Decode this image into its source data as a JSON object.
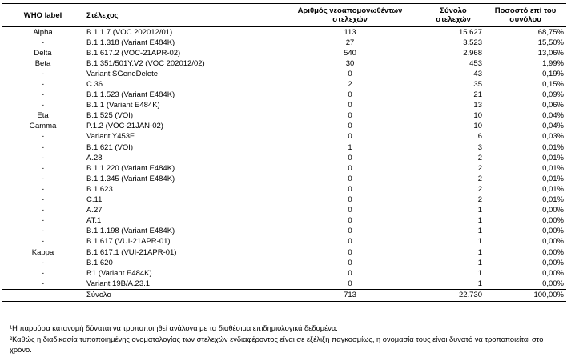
{
  "table": {
    "header": [
      "WHO label",
      "Στέλεχος",
      "Αριθμός νεοαπομονωθέντων στελεχών",
      "Σύνολο στελεχών",
      "Ποσοστό επί του συνόλου"
    ],
    "rows": [
      [
        "Alpha",
        "B.1.1.7 (VOC 202012/01)",
        "113",
        "15.627",
        "68,75%"
      ],
      [
        "-",
        "B.1.1.318 (Variant E484K)",
        "27",
        "3.523",
        "15,50%"
      ],
      [
        "Delta",
        "B.1.617.2 (VOC-21APR-02)",
        "540",
        "2.968",
        "13,06%"
      ],
      [
        "Beta",
        "B.1.351/501Y.V2 (VOC 202012/02)",
        "30",
        "453",
        "1,99%"
      ],
      [
        "-",
        "Variant SGeneDelete",
        "0",
        "43",
        "0,19%"
      ],
      [
        "-",
        "C.36",
        "2",
        "35",
        "0,15%"
      ],
      [
        "-",
        "B.1.1.523 (Variant E484K)",
        "0",
        "21",
        "0,09%"
      ],
      [
        "-",
        "B.1.1 (Variant E484K)",
        "0",
        "13",
        "0,06%"
      ],
      [
        "Eta",
        "B.1.525 (VOI)",
        "0",
        "10",
        "0,04%"
      ],
      [
        "Gamma",
        "P.1.2 (VOC-21JAN-02)",
        "0",
        "10",
        "0,04%"
      ],
      [
        "-",
        "Variant Y453F",
        "0",
        "6",
        "0,03%"
      ],
      [
        "-",
        "B.1.621 (VOI)",
        "1",
        "3",
        "0,01%"
      ],
      [
        "-",
        "A.28",
        "0",
        "2",
        "0,01%"
      ],
      [
        "-",
        "B.1.1.220 (Variant E484K)",
        "0",
        "2",
        "0,01%"
      ],
      [
        "-",
        "B.1.1.345 (Variant E484K)",
        "0",
        "2",
        "0,01%"
      ],
      [
        "-",
        "B.1.623",
        "0",
        "2",
        "0,01%"
      ],
      [
        "-",
        "C.11",
        "0",
        "2",
        "0,01%"
      ],
      [
        "-",
        "A.27",
        "0",
        "1",
        "0,00%"
      ],
      [
        "-",
        "AT.1",
        "0",
        "1",
        "0,00%"
      ],
      [
        "-",
        "B.1.1.198 (Variant E484K)",
        "0",
        "1",
        "0,00%"
      ],
      [
        "-",
        "B.1.617 (VUI-21APR-01)",
        "0",
        "1",
        "0,00%"
      ],
      [
        "Kappa",
        "B.1.617.1 (VUI-21APR-01)",
        "0",
        "1",
        "0,00%"
      ],
      [
        "-",
        "B.1.620",
        "0",
        "1",
        "0,00%"
      ],
      [
        "-",
        "R1 (Variant E484K)",
        "0",
        "1",
        "0,00%"
      ],
      [
        "-",
        "Variant 19B/A.23.1",
        "0",
        "1",
        "0,00%"
      ]
    ],
    "total": [
      "Σύνολο",
      "713",
      "22.730",
      "100,00%"
    ],
    "footnotes": [
      "¹Η παρούσα κατανομή δύναται να τροποποιηθεί ανάλογα με τα διαθέσιμα επιδημιολογικά δεδομένα.",
      "²Καθώς η διαδικασία τυποποιημένης ονοματολογίας των στελεχών ενδιαφέροντος είναι σε εξέλιξη παγκοσμίως, η ονομασία τους είναι δυνατό να τροποποιείται στο χρόνο."
    ]
  }
}
